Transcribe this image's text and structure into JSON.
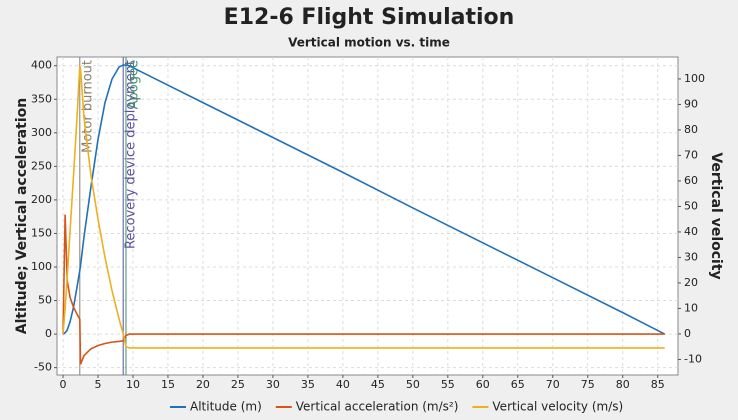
{
  "chart_data": {
    "type": "line",
    "title": "E12-6 Flight Simulation",
    "subtitle": "Vertical motion vs. time",
    "y_label": "Altitude; Vertical acceleration",
    "y2_label": "Vertical velocity",
    "x": [
      0,
      0.3,
      0.6,
      1,
      1.5,
      2,
      2.4,
      2.5,
      3,
      4,
      5,
      6,
      7,
      8,
      8.6,
      9,
      9.5,
      10,
      15,
      20,
      30,
      40,
      50,
      60,
      70,
      80,
      86
    ],
    "xlim": [
      -0.86,
      87.9
    ],
    "xticks": [
      0,
      5,
      10,
      15,
      20,
      25,
      30,
      35,
      40,
      45,
      50,
      55,
      60,
      65,
      70,
      75,
      80,
      85
    ],
    "ylim": [
      -61,
      413
    ],
    "yticks": [
      -50,
      0,
      50,
      100,
      150,
      200,
      250,
      300,
      350,
      400
    ],
    "y2lim": [
      -16.1,
      108.6
    ],
    "y2ticks": [
      -10,
      0,
      10,
      20,
      30,
      40,
      50,
      60,
      70,
      80,
      90,
      100
    ],
    "grid": true,
    "series": [
      {
        "name": "Altitude (m)",
        "color": "#1f72b8",
        "values": [
          0,
          2,
          6,
          18,
          40,
          70,
          95,
          102,
          145,
          220,
          290,
          345,
          380,
          398,
          401,
          401,
          400,
          397,
          371,
          345,
          293,
          241,
          188,
          136,
          84,
          32,
          0
        ]
      },
      {
        "name": "Vertical acceleration (m/s²)",
        "color": "#d95319",
        "values": [
          0,
          178,
          80,
          55,
          40,
          30,
          22,
          -45,
          -32,
          -22,
          -17,
          -14,
          -12,
          -11,
          -10,
          -2,
          0,
          0,
          0,
          0,
          0,
          0,
          0,
          0,
          0,
          0,
          0
        ]
      },
      {
        "name": "Vertical velocity (m/s)",
        "color": "#edb120",
        "axis": "y2",
        "values": [
          0,
          10,
          22,
          40,
          62,
          85,
          105,
          104,
          85,
          62,
          45,
          30,
          17,
          6,
          0,
          -5,
          -5.5,
          -5.5,
          -5.5,
          -5.5,
          -5.5,
          -5.5,
          -5.5,
          -5.5,
          -5.5,
          -5.5,
          -5.5
        ]
      }
    ],
    "events": [
      {
        "label": "Motor burnout",
        "x": 2.4,
        "color": "#8a7f6a"
      },
      {
        "label": "Recovery device deployment",
        "x": 8.6,
        "color": "#5a4fa0"
      },
      {
        "label": "Apogee",
        "x": 9.0,
        "color": "#3f8f6a"
      }
    ]
  }
}
